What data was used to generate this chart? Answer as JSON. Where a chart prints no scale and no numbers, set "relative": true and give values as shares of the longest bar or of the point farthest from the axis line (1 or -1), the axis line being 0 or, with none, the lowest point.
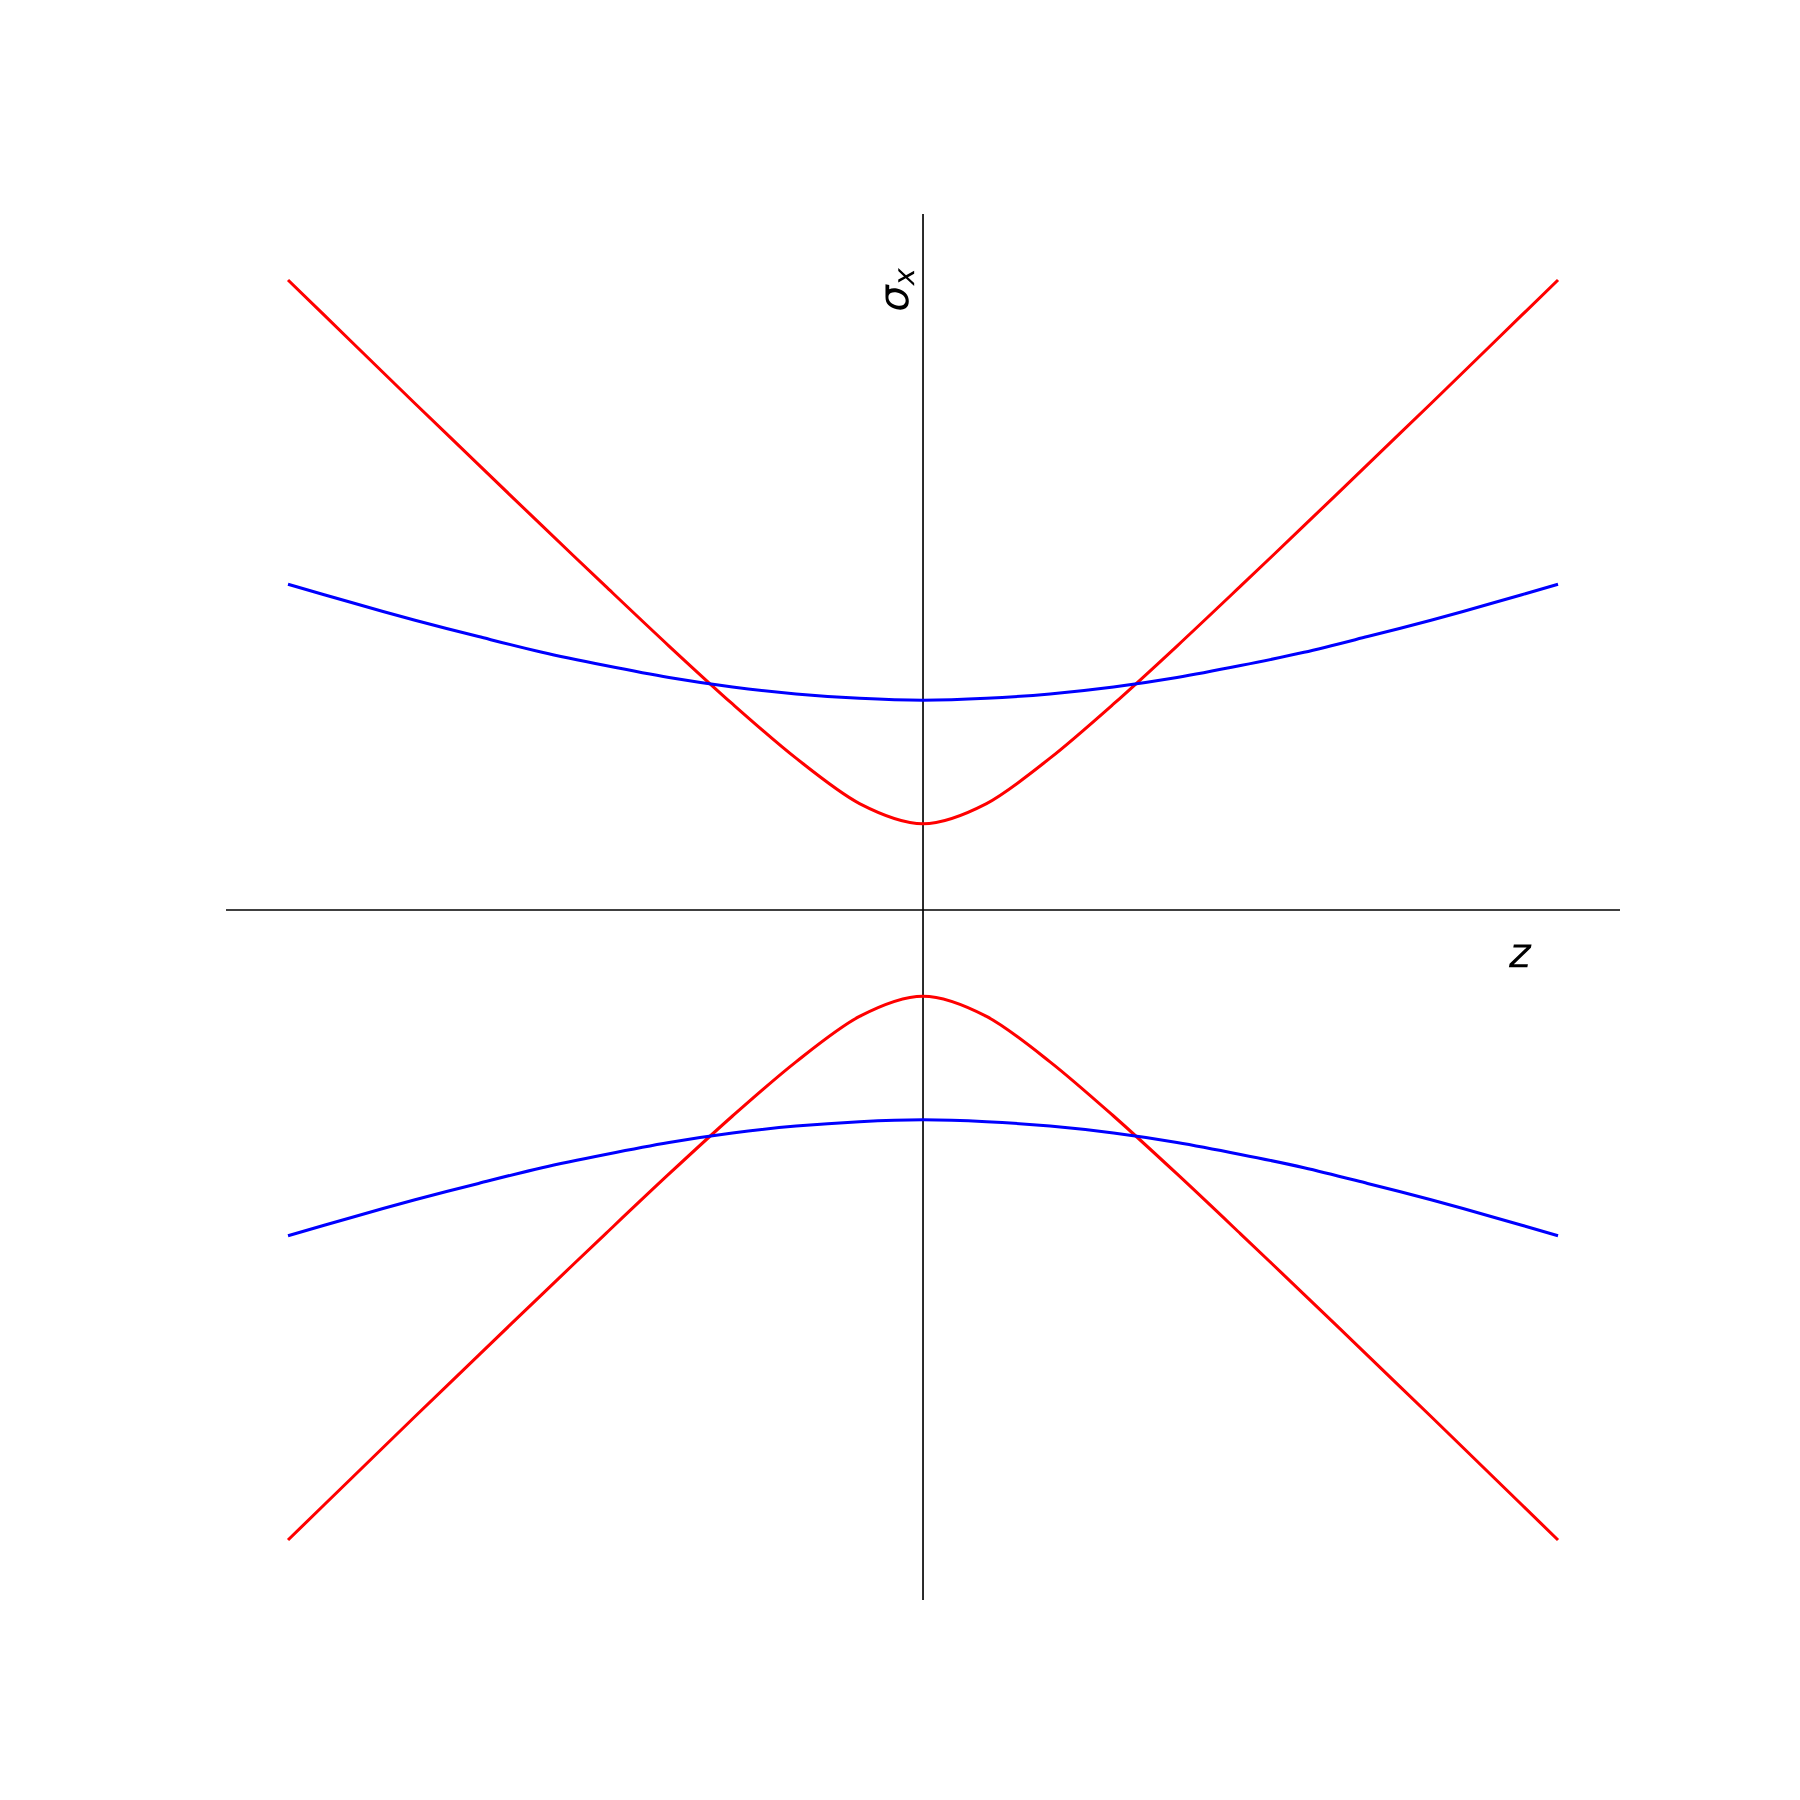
{
  "chart_data": {
    "type": "line",
    "relative": true,
    "xlabel": "z",
    "ylabel": "σ$_{x}$",
    "marker": "none",
    "line_style": "solid",
    "categories": [
      null,
      null,
      null,
      null,
      null,
      null,
      null,
      null,
      null,
      null,
      null,
      null,
      null,
      null,
      null,
      null,
      null,
      null,
      null,
      null,
      null
    ],
    "series": [
      {
        "color": "#ff0000",
        "values": [
          1.0,
          0.902,
          0.804,
          0.707,
          0.61,
          0.514,
          0.419,
          0.327,
          0.241,
          0.169,
          0.137,
          0.169,
          0.241,
          0.327,
          0.419,
          0.514,
          0.61,
          0.707,
          0.804,
          0.902,
          1.0
        ]
      },
      {
        "color": "#ff0000",
        "values": [
          -1.0,
          -0.902,
          -0.804,
          -0.707,
          -0.61,
          -0.514,
          -0.419,
          -0.327,
          -0.241,
          -0.169,
          -0.137,
          -0.169,
          -0.241,
          -0.327,
          -0.419,
          -0.514,
          -0.61,
          -0.707,
          -0.804,
          -0.902,
          -1.0
        ]
      },
      {
        "color": "#0000ff",
        "values": [
          0.517,
          0.488,
          0.46,
          0.434,
          0.409,
          0.388,
          0.369,
          0.354,
          0.343,
          0.336,
          0.333,
          0.336,
          0.343,
          0.354,
          0.369,
          0.388,
          0.409,
          0.434,
          0.46,
          0.488,
          0.517
        ]
      },
      {
        "color": "#0000ff",
        "values": [
          -0.517,
          -0.488,
          -0.46,
          -0.434,
          -0.409,
          -0.388,
          -0.369,
          -0.354,
          -0.343,
          -0.336,
          -0.333,
          -0.336,
          -0.343,
          -0.354,
          -0.369,
          -0.388,
          -0.409,
          -0.434,
          -0.46,
          -0.488,
          -0.517
        ]
      }
    ]
  }
}
